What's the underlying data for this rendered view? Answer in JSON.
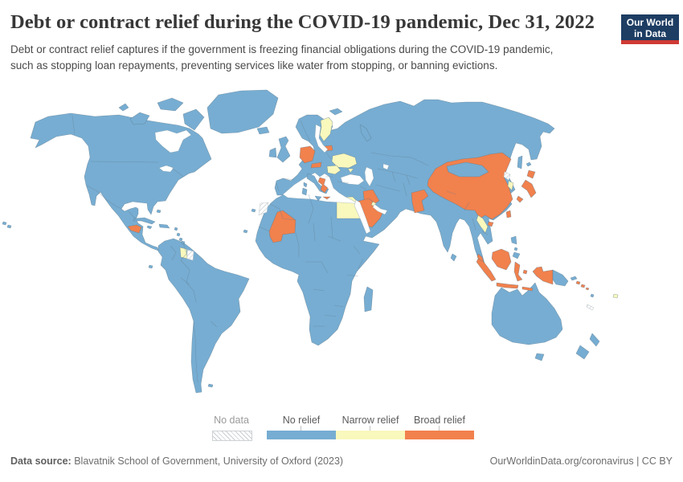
{
  "header": {
    "title": "Debt or contract relief during the COVID-19 pandemic, Dec 31, 2022",
    "subtitle": "Debt or contract relief captures if the government is freezing financial obligations during the COVID-19 pandemic, such as stopping loan repayments, preventing services like water from stopping, or banning evictions.",
    "logo": {
      "line1": "Our World",
      "line2": "in Data"
    }
  },
  "legend": {
    "no_data": {
      "label": "No data"
    },
    "categories": [
      {
        "label": "No relief"
      },
      {
        "label": "Narrow relief"
      },
      {
        "label": "Broad relief"
      }
    ]
  },
  "footer": {
    "source_label": "Data source:",
    "source_text": " Blavatnik School of Government, University of Oxford (2023)",
    "link_text": "OurWorldinData.org/coronavirus | CC BY"
  },
  "chart_data": {
    "type": "choropleth_map",
    "title": "Debt or contract relief during the COVID-19 pandemic",
    "date": "Dec 31, 2022",
    "categories": [
      "No data",
      "No relief",
      "Narrow relief",
      "Broad relief"
    ],
    "colors": {
      "No data": "hatched",
      "No relief": "#77add2",
      "Narrow relief": "#f9f8bd",
      "Broad relief": "#f1814d"
    },
    "legend_position": "bottom-center",
    "values": {
      "Broad relief": [
        "Germany",
        "Austria",
        "Lithuania",
        "Greece",
        "Iraq",
        "Saudi Arabia",
        "Pakistan",
        "China",
        "Taiwan",
        "Japan",
        "Mali",
        "Honduras",
        "Malaysia",
        "Indonesia",
        "Solomon Islands"
      ],
      "Narrow relief": [
        "Finland",
        "Ukraine",
        "Romania",
        "Egypt",
        "Kuwait",
        "Laos",
        "South Korea",
        "Guyana",
        "Fiji"
      ],
      "No data": [
        "North Korea",
        "Western Sahara",
        "Suriname",
        "New Caledonia"
      ],
      "No relief": [
        "United States",
        "Canada",
        "Mexico",
        "Cuba",
        "Guatemala",
        "Colombia",
        "Venezuela",
        "Brazil",
        "Peru",
        "Bolivia",
        "Chile",
        "Argentina",
        "United Kingdom",
        "Ireland",
        "Iceland",
        "France",
        "Spain",
        "Portugal",
        "Norway",
        "Sweden",
        "Denmark",
        "Poland",
        "Italy",
        "Turkey",
        "Russia",
        "Kazakhstan",
        "Mongolia",
        "India",
        "Iran",
        "Afghanistan",
        "Thailand",
        "Vietnam",
        "Cambodia",
        "Myanmar",
        "Philippines",
        "Sri Lanka",
        "Madagascar",
        "South Africa",
        "Nigeria",
        "Ethiopia",
        "Algeria",
        "Morocco",
        "Australia",
        "New Zealand",
        "Papua New Guinea"
      ]
    }
  }
}
